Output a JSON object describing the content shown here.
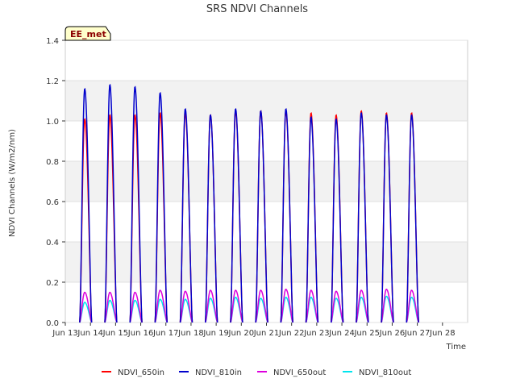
{
  "chart_data": {
    "type": "line",
    "title": "SRS NDVI Channels",
    "xlabel": "Time",
    "ylabel": "NDVI Channels (W/m2/nm)",
    "badge": "EE_met",
    "ylim": [
      0,
      1.4
    ],
    "yticks": [
      "0.0",
      "0.2",
      "0.4",
      "0.6",
      "0.8",
      "1.0",
      "1.2",
      "1.4"
    ],
    "xlim": [
      12,
      28
    ],
    "xticks": [
      {
        "day": 12,
        "label": "Jun 13"
      },
      {
        "day": 13,
        "label": "Jun 14"
      },
      {
        "day": 14,
        "label": "Jun 15"
      },
      {
        "day": 15,
        "label": "Jun 16"
      },
      {
        "day": 16,
        "label": "Jun 17"
      },
      {
        "day": 17,
        "label": "Jun 18"
      },
      {
        "day": 18,
        "label": "Jun 19"
      },
      {
        "day": 19,
        "label": "Jun 20"
      },
      {
        "day": 20,
        "label": "Jun 21"
      },
      {
        "day": 21,
        "label": "Jun 22"
      },
      {
        "day": 22,
        "label": "Jun 23"
      },
      {
        "day": 23,
        "label": "Jun 24"
      },
      {
        "day": 24,
        "label": "Jun 25"
      },
      {
        "day": 25,
        "label": "Jun 26"
      },
      {
        "day": 26,
        "label": "Jun 27"
      },
      {
        "day": 27,
        "label": "Jun 28"
      }
    ],
    "grid": "horizontal bands",
    "legend_position": "bottom",
    "day_start": 12.57,
    "day_peak": 12.77,
    "day_end": 13.05,
    "series": [
      {
        "name": "NDVI_650in",
        "color": "#ff0000",
        "peaks": [
          1.01,
          1.03,
          1.03,
          1.04,
          1.04,
          1.03,
          1.05,
          1.05,
          1.05,
          1.04,
          1.03,
          1.05,
          1.04,
          1.04
        ]
      },
      {
        "name": "NDVI_810in",
        "color": "#0000cc",
        "peaks": [
          1.16,
          1.18,
          1.17,
          1.14,
          1.06,
          1.03,
          1.06,
          1.05,
          1.06,
          1.02,
          1.01,
          1.04,
          1.03,
          1.03
        ]
      },
      {
        "name": "NDVI_650out",
        "color": "#dd00dd",
        "peaks": [
          0.15,
          0.15,
          0.15,
          0.16,
          0.155,
          0.16,
          0.16,
          0.16,
          0.165,
          0.16,
          0.155,
          0.16,
          0.165,
          0.16
        ]
      },
      {
        "name": "NDVI_810out",
        "color": "#00e5ee",
        "peaks": [
          0.1,
          0.11,
          0.11,
          0.115,
          0.115,
          0.12,
          0.125,
          0.12,
          0.125,
          0.125,
          0.12,
          0.125,
          0.13,
          0.125
        ]
      }
    ]
  }
}
